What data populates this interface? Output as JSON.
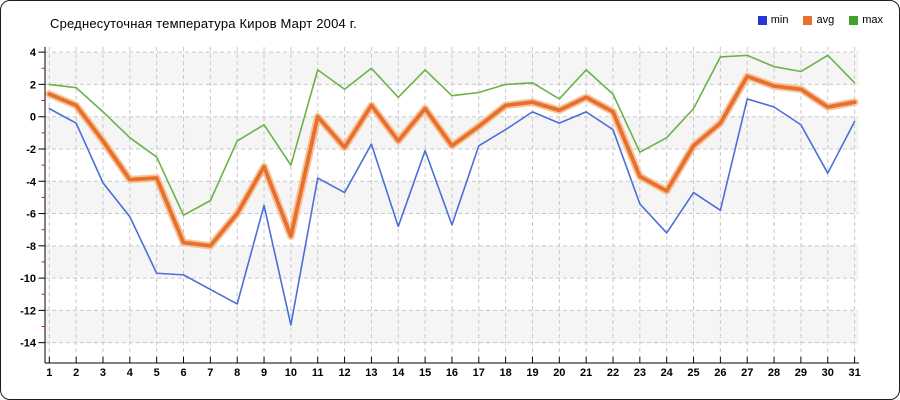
{
  "chart_data": {
    "type": "line",
    "title": "Среднесуточная температура Киров  Март 2004 г.",
    "legend_position": "top-right",
    "grid": "dashed",
    "x": [
      1,
      2,
      3,
      4,
      5,
      6,
      7,
      8,
      9,
      10,
      11,
      12,
      13,
      14,
      15,
      16,
      17,
      18,
      19,
      20,
      21,
      22,
      23,
      24,
      25,
      26,
      27,
      28,
      29,
      30,
      31
    ],
    "y_ticks": [
      4,
      2,
      0,
      -2,
      -4,
      -6,
      -8,
      -10,
      -12,
      -14
    ],
    "y_minor_ticks": [
      3,
      1,
      -1,
      -3,
      -5,
      -7,
      -9,
      -11,
      -13
    ],
    "ylim": [
      -14,
      4
    ],
    "xlabel": "",
    "ylabel": "",
    "series": [
      {
        "name": "min",
        "line_color": "#4a6fd8",
        "swatch_color": "#2438d4",
        "values": [
          0.5,
          -0.4,
          -4.1,
          -6.2,
          -9.7,
          -9.8,
          -10.7,
          -11.6,
          -5.5,
          -12.9,
          -3.8,
          -4.7,
          -1.7,
          -6.8,
          -2.1,
          -6.7,
          -1.8,
          -0.8,
          0.3,
          -0.4,
          0.3,
          -0.8,
          -5.4,
          -7.2,
          -4.7,
          -5.8,
          1.1,
          0.6,
          -0.5,
          -3.5,
          -0.3
        ]
      },
      {
        "name": "avg",
        "line_color": "#e8702d",
        "halo_color": "#f6c49c",
        "swatch_color": "#e8702d",
        "values": [
          1.4,
          0.7,
          -1.5,
          -3.9,
          -3.8,
          -7.8,
          -8.0,
          -6.0,
          -3.1,
          -7.4,
          0.0,
          -1.9,
          0.7,
          -1.5,
          0.5,
          -1.8,
          -0.6,
          0.7,
          0.9,
          0.4,
          1.2,
          0.3,
          -3.7,
          -4.6,
          -1.8,
          -0.4,
          2.5,
          1.9,
          1.7,
          0.6,
          0.9
        ]
      },
      {
        "name": "max",
        "line_color": "#6cb248",
        "swatch_color": "#3da32b",
        "values": [
          2.0,
          1.8,
          0.3,
          -1.3,
          -2.5,
          -6.1,
          -5.2,
          -1.5,
          -0.5,
          -3.0,
          2.9,
          1.7,
          3.0,
          1.2,
          2.9,
          1.3,
          1.5,
          2.0,
          2.1,
          1.1,
          2.9,
          1.4,
          -2.2,
          -1.3,
          0.5,
          3.7,
          3.8,
          3.1,
          2.8,
          3.8,
          2.1
        ]
      }
    ],
    "colors": {
      "band": "#f5f5f5",
      "grid": "#c9c9c9",
      "axis": "#000000",
      "minor_tick": "#cc2222",
      "background": "#ffffff"
    }
  }
}
